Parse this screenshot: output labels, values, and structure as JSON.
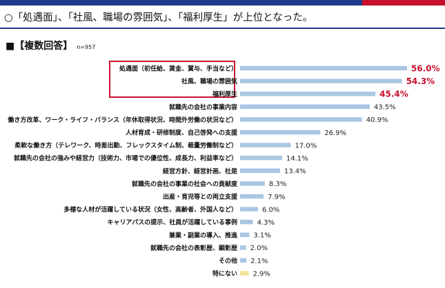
{
  "headline": "○「処遇面」、「社風、職場の雰囲気」、「福利厚生」が上位となった。",
  "section": {
    "title": "■【複数回答】",
    "n": "n=957"
  },
  "colors": {
    "bar": "#a9c6e3",
    "bar_last": "#f3e29c",
    "highlight": "#c8102e",
    "accent": "#1f3a8a"
  },
  "chart_data": {
    "type": "bar",
    "orientation": "horizontal",
    "categories": [
      "処遇面（初任給、賃金、賞与、手当など）",
      "社風、職場の雰囲気",
      "福利厚生",
      "就職先の会社の事業内容",
      "働き方改革、ワーク・ライフ・バランス（年休取得状況、時間外労働の状況など）",
      "人材育成・研修制度、自己啓発への支援",
      "柔軟な働き方（テレワーク、時差出勤、フレックスタイム制、裁量労働制など）",
      "就職先の会社の強みや経営力（技術力、市場での優位性、成長力、利益率など）",
      "経営方針、経営計画、社是",
      "就職先の会社の事業の社会への貢献度",
      "出産・育児等との両立支援",
      "多様な人材が活躍している状況（女性、高齢者、外国人など）",
      "キャリアパスの提示、社員が活躍している事例",
      "兼業・副業の導入、推進",
      "就職先の会社の表彰歴、顕彰歴",
      "その他",
      "特にない"
    ],
    "values": [
      56.0,
      54.3,
      45.4,
      43.5,
      40.9,
      26.9,
      17.0,
      14.1,
      13.4,
      8.3,
      7.9,
      6.0,
      4.3,
      3.1,
      2.0,
      2.1,
      2.9
    ],
    "value_labels": [
      "56.0%",
      "54.3%",
      "45.4%",
      "43.5%",
      "40.9%",
      "26.9%",
      "17.0%",
      "14.1%",
      "13.4%",
      "8.3%",
      "7.9%",
      "6.0%",
      "4.3%",
      "3.1%",
      "2.0%",
      "2.1%",
      "2.9%"
    ],
    "highlighted": [
      0,
      1,
      2
    ],
    "xlim": [
      0,
      60
    ],
    "grid": false,
    "legend": "none"
  }
}
